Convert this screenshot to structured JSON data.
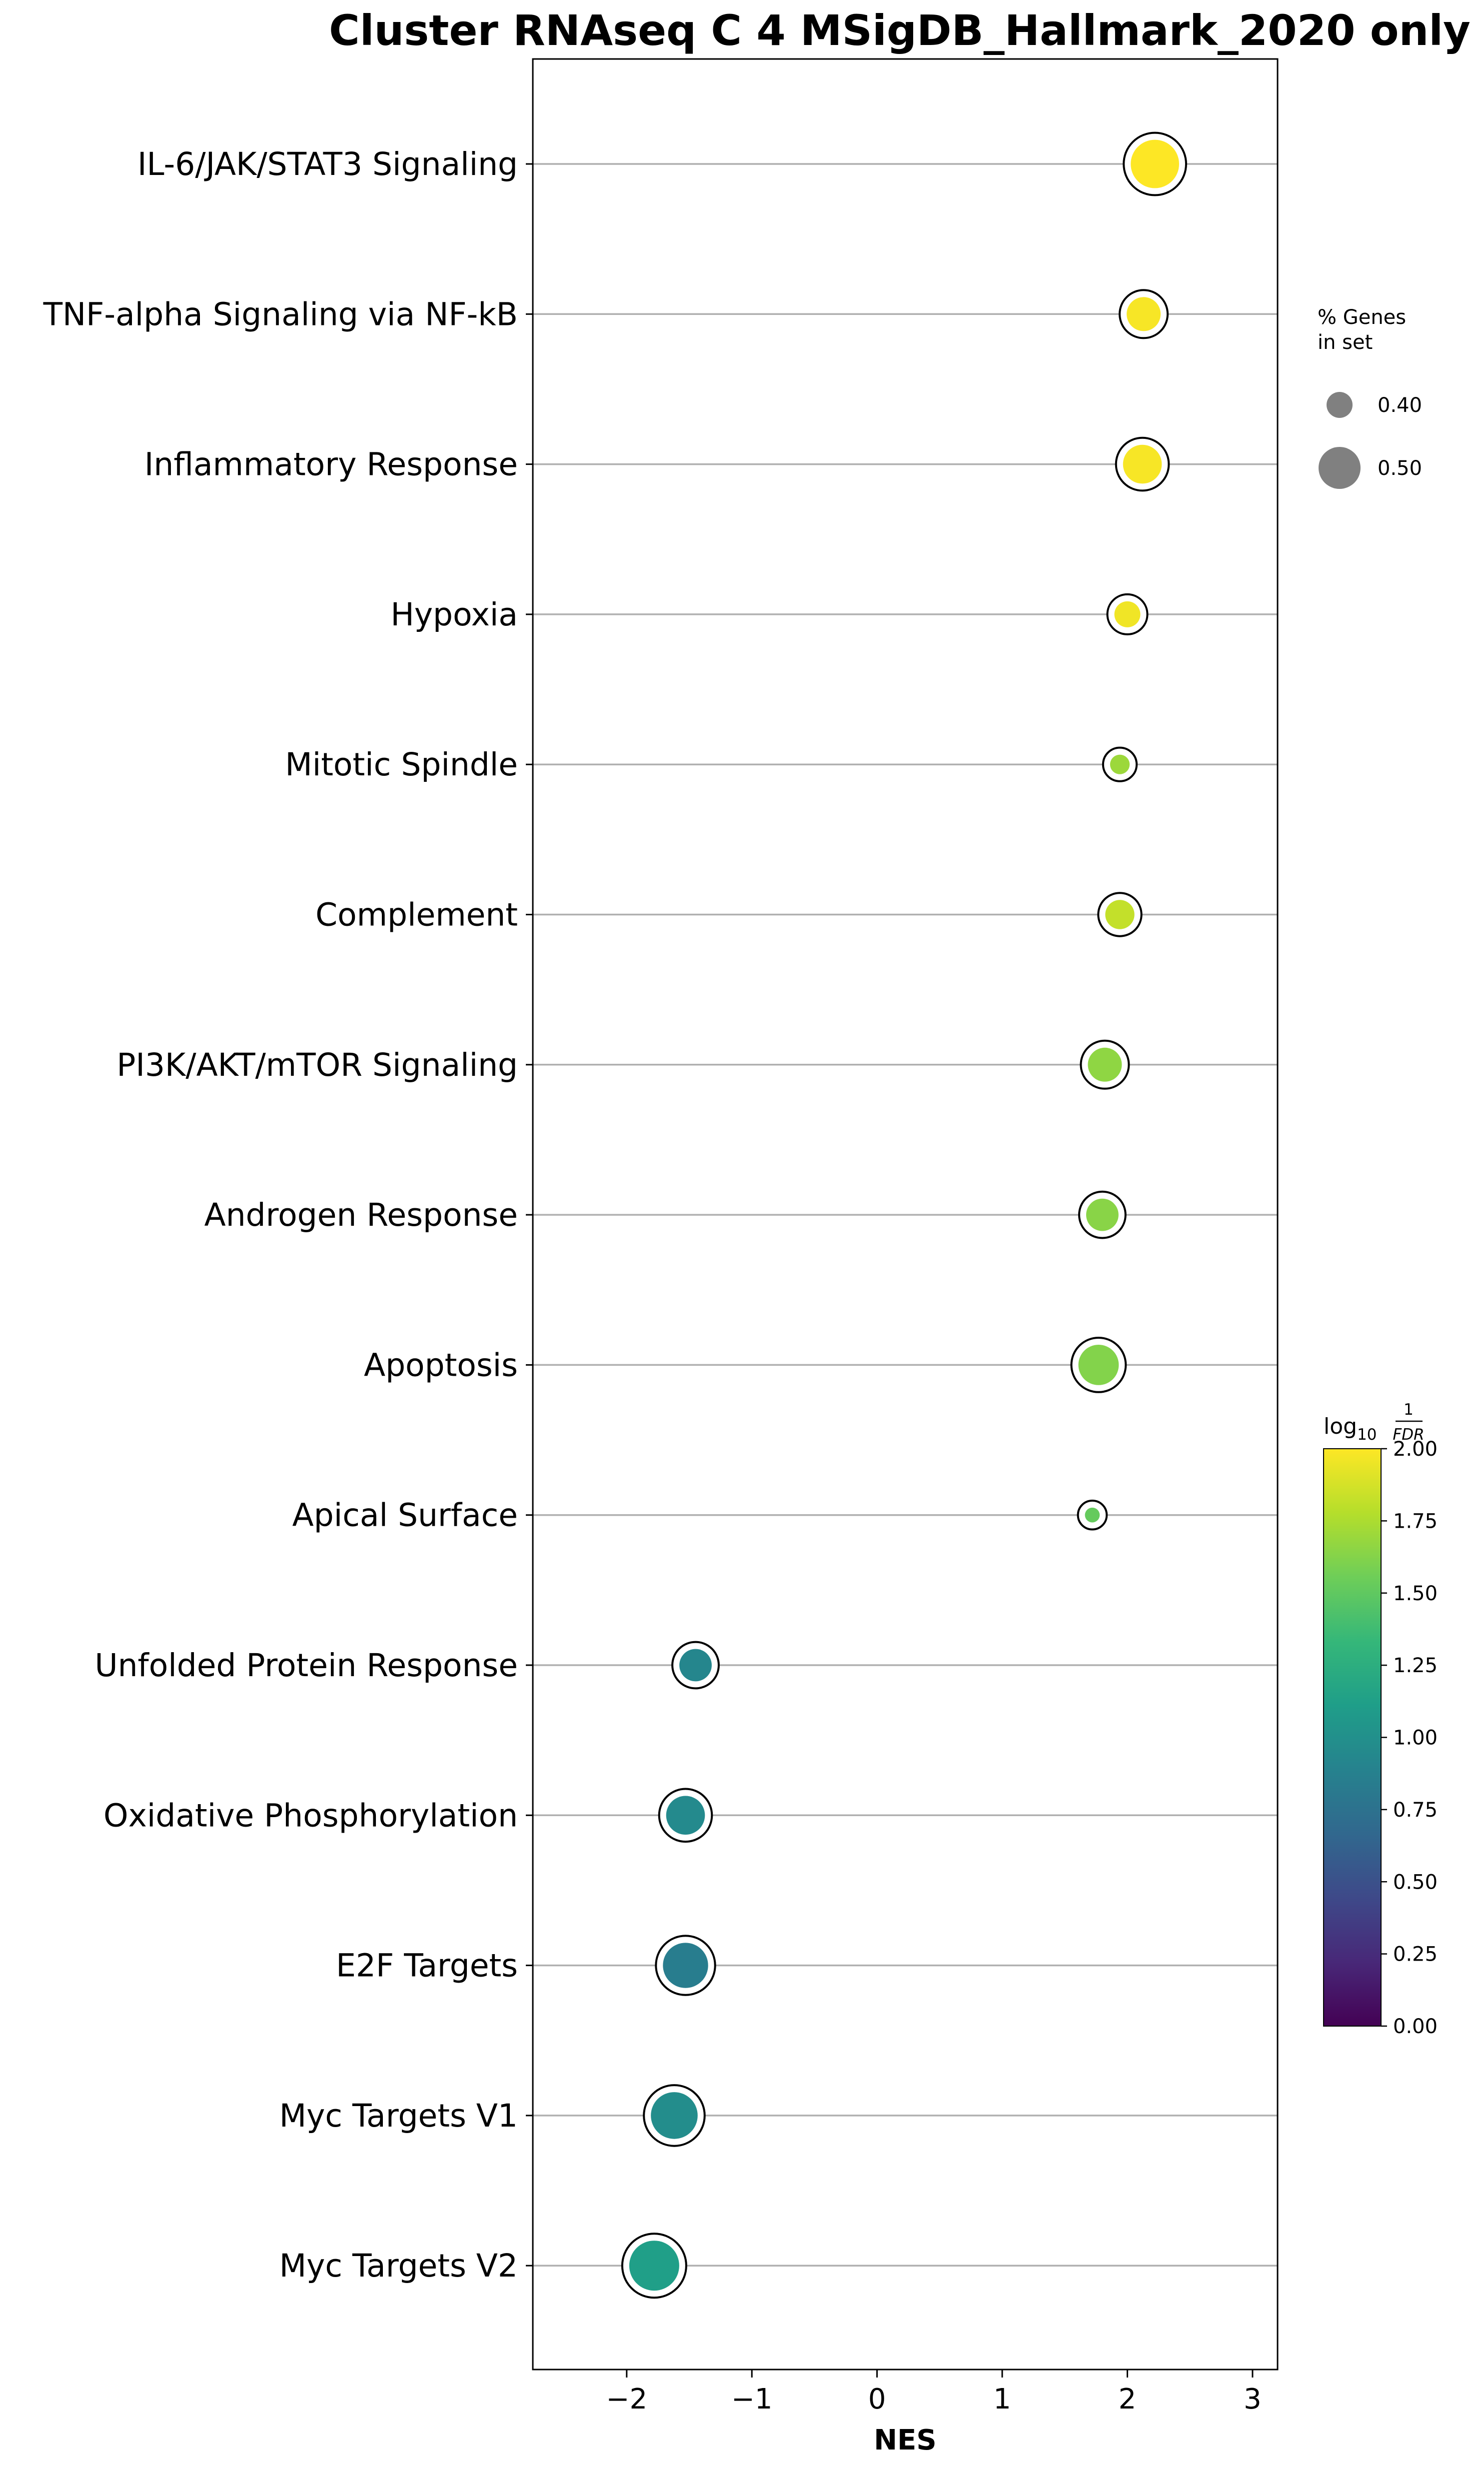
{
  "chart_data": {
    "type": "scatter",
    "title": "Cluster RNAseq C 4 MSigDB_Hallmark_2020 only",
    "xlabel": "NES",
    "ylabel": "",
    "xlim": [
      -2.75,
      3.2
    ],
    "xticks": [
      -2,
      -1,
      0,
      1,
      2,
      3
    ],
    "xtick_labels": [
      "−2",
      "−1",
      "0",
      "1",
      "2",
      "3"
    ],
    "grid": "horizontal lines at each term",
    "categories": [
      "IL-6/JAK/STAT3 Signaling",
      "TNF-alpha Signaling via NF-kB",
      "Inflammatory Response",
      "Hypoxia",
      "Mitotic Spindle",
      "Complement",
      "PI3K/AKT/mTOR  Signaling",
      "Androgen Response",
      "Apoptosis",
      "Apical Surface",
      "Unfolded Protein Response",
      "Oxidative Phosphorylation",
      "E2F Targets",
      "Myc Targets V1",
      "Myc Targets V2"
    ],
    "points": [
      {
        "term": "IL-6/JAK/STAT3 Signaling",
        "nes": 2.22,
        "log10_inv_fdr": 2.0,
        "pct_genes": 0.54
      },
      {
        "term": "TNF-alpha Signaling via NF-kB",
        "nes": 2.13,
        "log10_inv_fdr": 1.98,
        "pct_genes": 0.45
      },
      {
        "term": "Inflammatory Response",
        "nes": 2.12,
        "log10_inv_fdr": 1.98,
        "pct_genes": 0.48
      },
      {
        "term": "Hypoxia",
        "nes": 2.0,
        "log10_inv_fdr": 1.96,
        "pct_genes": 0.4
      },
      {
        "term": "Mitotic Spindle",
        "nes": 1.94,
        "log10_inv_fdr": 1.7,
        "pct_genes": 0.36
      },
      {
        "term": "Complement",
        "nes": 1.94,
        "log10_inv_fdr": 1.82,
        "pct_genes": 0.42
      },
      {
        "term": "PI3K/AKT/mTOR  Signaling",
        "nes": 1.82,
        "log10_inv_fdr": 1.66,
        "pct_genes": 0.45
      },
      {
        "term": "Androgen Response",
        "nes": 1.8,
        "log10_inv_fdr": 1.64,
        "pct_genes": 0.44
      },
      {
        "term": "Apoptosis",
        "nes": 1.77,
        "log10_inv_fdr": 1.62,
        "pct_genes": 0.49
      },
      {
        "term": "Apical Surface",
        "nes": 1.72,
        "log10_inv_fdr": 1.52,
        "pct_genes": 0.33
      },
      {
        "term": "Unfolded Protein Response",
        "nes": -1.45,
        "log10_inv_fdr": 0.92,
        "pct_genes": 0.44
      },
      {
        "term": "Oxidative Phosphorylation",
        "nes": -1.53,
        "log10_inv_fdr": 0.95,
        "pct_genes": 0.48
      },
      {
        "term": "E2F Targets",
        "nes": -1.53,
        "log10_inv_fdr": 0.85,
        "pct_genes": 0.52
      },
      {
        "term": "Myc Targets V1",
        "nes": -1.62,
        "log10_inv_fdr": 0.98,
        "pct_genes": 0.53
      },
      {
        "term": "Myc Targets V2",
        "nes": -1.78,
        "log10_inv_fdr": 1.12,
        "pct_genes": 0.55
      }
    ],
    "size_legend": {
      "title_lines": [
        "% Genes",
        "in set"
      ],
      "entries": [
        {
          "label": "0.40",
          "value": 0.4
        },
        {
          "label": "0.50",
          "value": 0.5
        }
      ]
    },
    "colorbar": {
      "label": "log10 1/FDR",
      "label_base": "log",
      "label_sub": "10",
      "label_num": "1",
      "label_den": "FDR",
      "range": [
        0,
        2
      ],
      "colormap": "viridis",
      "ticks": [
        "0.00",
        "0.25",
        "0.50",
        "0.75",
        "1.00",
        "1.25",
        "1.50",
        "1.75",
        "2.00"
      ]
    },
    "colors": {
      "marker_outline": "#000000",
      "legend_marker": "#808080",
      "gridline": "#b0b0b0"
    }
  }
}
